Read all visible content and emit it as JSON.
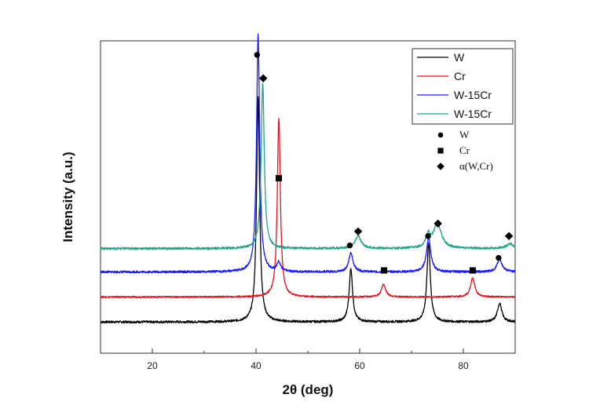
{
  "chart_data": {
    "type": "line",
    "title": "",
    "xlabel": "2θ (deg)",
    "ylabel": "Intensity (a.u.)",
    "xlim": [
      10,
      90
    ],
    "ylim": [
      0,
      100
    ],
    "xticks": [
      20,
      40,
      60,
      80
    ],
    "series": [
      {
        "name": "W",
        "color": "#000000",
        "baseline": 10,
        "noise": 0.35,
        "peaks": [
          {
            "x": 40.4,
            "h": 72,
            "w": 0.35
          },
          {
            "x": 58.3,
            "h": 17,
            "w": 0.4
          },
          {
            "x": 73.3,
            "h": 25,
            "w": 0.4
          },
          {
            "x": 87.0,
            "h": 6,
            "w": 0.5
          }
        ]
      },
      {
        "name": "Cr",
        "color": "#e8101a",
        "baseline": 18,
        "noise": 0.25,
        "peaks": [
          {
            "x": 44.4,
            "h": 57,
            "w": 0.35
          },
          {
            "x": 64.6,
            "h": 4,
            "w": 0.5
          },
          {
            "x": 81.8,
            "h": 6,
            "w": 0.5
          }
        ]
      },
      {
        "name": "W-15Cr",
        "color": "#1a1aff",
        "baseline": 26,
        "noise": 0.35,
        "peaks": [
          {
            "x": 40.4,
            "h": 76,
            "w": 0.35
          },
          {
            "x": 44.4,
            "h": 3,
            "w": 0.4
          },
          {
            "x": 58.3,
            "h": 6,
            "w": 0.5
          },
          {
            "x": 73.3,
            "h": 11,
            "w": 0.5
          },
          {
            "x": 87.0,
            "h": 4,
            "w": 0.6
          }
        ]
      },
      {
        "name": "W-15Cr",
        "color": "#1fa58a",
        "baseline": 33.5,
        "noise": 0.35,
        "peaks": [
          {
            "x": 40.8,
            "h": 2,
            "w": 0.4
          },
          {
            "x": 41.3,
            "h": 52,
            "w": 0.35
          },
          {
            "x": 59.7,
            "h": 4,
            "w": 0.7
          },
          {
            "x": 73.2,
            "h": 4,
            "w": 0.5
          },
          {
            "x": 75.0,
            "h": 8,
            "w": 0.9
          },
          {
            "x": 89.0,
            "h": 1.5,
            "w": 0.8
          }
        ]
      }
    ],
    "markers": [
      {
        "type": "circle",
        "x": 40.2,
        "y": 95.5
      },
      {
        "type": "diamond",
        "x": 41.4,
        "y": 88
      },
      {
        "type": "square",
        "x": 44.4,
        "y": 56
      },
      {
        "type": "diamond",
        "x": 59.7,
        "y": 39
      },
      {
        "type": "circle",
        "x": 58.1,
        "y": 34.5
      },
      {
        "type": "diamond",
        "x": 75.1,
        "y": 41.5
      },
      {
        "type": "circle",
        "x": 73.2,
        "y": 37.5
      },
      {
        "type": "diamond",
        "x": 88.8,
        "y": 37.5
      },
      {
        "type": "circle",
        "x": 86.8,
        "y": 30.5
      },
      {
        "type": "square",
        "x": 64.7,
        "y": 26.5
      },
      {
        "type": "square",
        "x": 81.8,
        "y": 26.5
      }
    ],
    "legend_position": "top-right",
    "marker_legend": [
      {
        "type": "circle",
        "label": "W"
      },
      {
        "type": "square",
        "label": "Cr"
      },
      {
        "type": "diamond",
        "label": "α(W,Cr)"
      }
    ]
  }
}
